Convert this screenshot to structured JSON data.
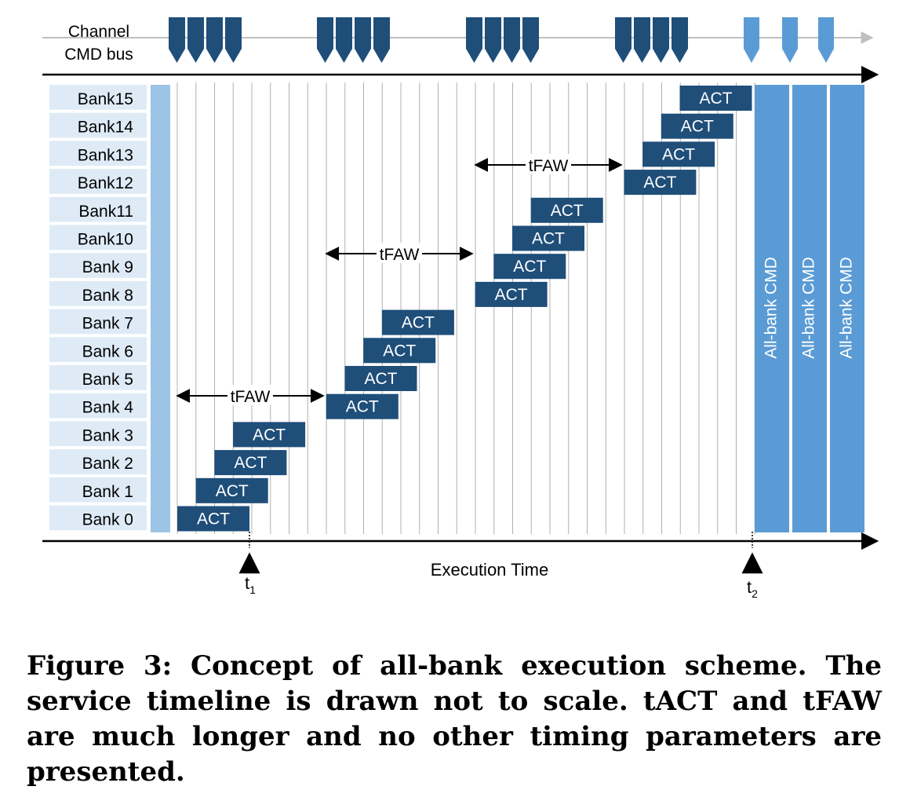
{
  "diagram": {
    "cmd_bus_label_line1": "Channel",
    "cmd_bus_label_line2": "CMD bus",
    "banks": [
      "Bank15",
      "Bank14",
      "Bank13",
      "Bank12",
      "Bank11",
      "Bank10",
      "Bank 9",
      "Bank 8",
      "Bank 7",
      "Bank 6",
      "Bank 5",
      "Bank 4",
      "Bank 3",
      "Bank 2",
      "Bank 1",
      "Bank 0"
    ],
    "act_label": "ACT",
    "tfaw_label": "tFAW",
    "allbank_label": "All-bank CMD",
    "allbank_count": 3,
    "cmd_groups": 4,
    "cmds_per_group": 4,
    "light_cmds": 3,
    "time_label": "Execution Time",
    "t1_main": "t",
    "t1_sub": "1",
    "t2_main": "t",
    "t2_sub": "2"
  },
  "colors": {
    "dark_blue": "#1f4e79",
    "light_blue": "#5b9bd5",
    "bank_bg": "#deebf7",
    "pale_bar": "#9dc3e6"
  },
  "caption": "Figure 3: Concept of all-bank execution scheme. The service timeline is drawn not to scale. tACT and tFAW are much longer and no other timing parameters are presented."
}
